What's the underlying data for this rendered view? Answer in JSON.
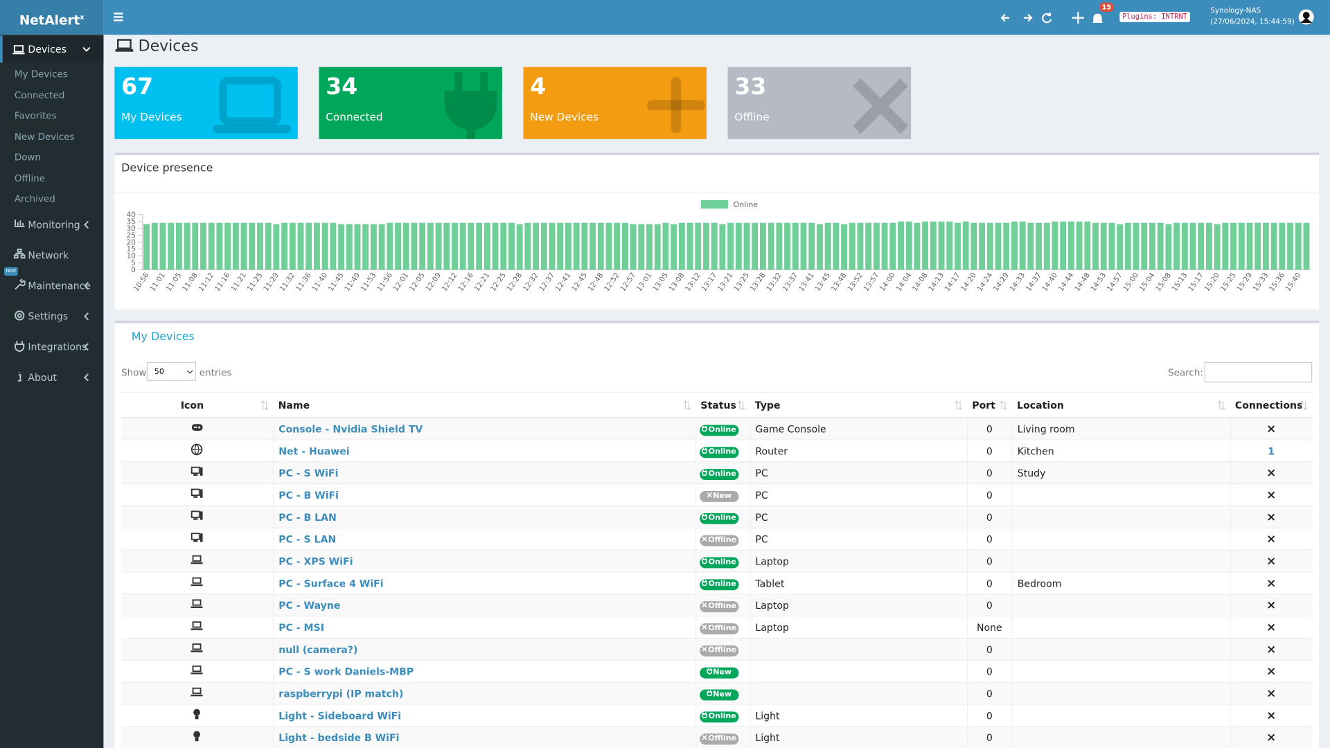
{
  "brand": {
    "name": "NetAlert",
    "sup": "x"
  },
  "sidebar": {
    "active": "Devices",
    "submenu": [
      "My Devices",
      "Connected",
      "Favorites",
      "New Devices",
      "Down",
      "Offline",
      "Archived"
    ],
    "menu": [
      "Monitoring",
      "Network",
      "Maintenance",
      "Settings",
      "Integrations",
      "About"
    ],
    "new_badge": "NEW"
  },
  "topbar": {
    "notifications": 15,
    "plugins": "Plugins: INTRNT",
    "host": "Synology-NAS",
    "datetime": "(27/06/2024, 15:44:59)"
  },
  "page_title": "Devices",
  "tiles": [
    {
      "value": 67,
      "label": "My Devices",
      "color": "#00c0ef"
    },
    {
      "value": 34,
      "label": "Connected",
      "color": "#00a65a"
    },
    {
      "value": 4,
      "label": "New Devices",
      "color": "#f39c12"
    },
    {
      "value": 33,
      "label": "Offline",
      "color": "#b5bac4"
    }
  ],
  "chart_data": {
    "type": "bar",
    "title": "Device presence",
    "categories": [
      "10:56",
      null,
      "11:01",
      null,
      "11:05",
      null,
      "11:08",
      null,
      "11:12",
      null,
      "11:16",
      null,
      "11:21",
      null,
      "11:25",
      null,
      "11:29",
      null,
      "11:32",
      null,
      "11:36",
      null,
      "11:40",
      null,
      "11:45",
      null,
      "11:49",
      null,
      "11:53",
      null,
      "11:56",
      null,
      "12:01",
      null,
      "12:05",
      null,
      "12:09",
      null,
      "12:12",
      null,
      "12:16",
      null,
      "12:21",
      null,
      "12:25",
      null,
      "12:28",
      null,
      "12:32",
      null,
      "12:37",
      null,
      "12:41",
      null,
      "12:45",
      null,
      "12:48",
      null,
      "12:52",
      null,
      "12:57",
      null,
      "13:01",
      null,
      "13:05",
      null,
      "13:08",
      null,
      "13:12",
      null,
      "13:17",
      null,
      "13:21",
      null,
      "13:25",
      null,
      "13:28",
      null,
      "13:32",
      null,
      "13:37",
      null,
      "13:41",
      null,
      "13:45",
      null,
      "13:48",
      null,
      "13:52",
      null,
      "13:57",
      null,
      "14:00",
      null,
      "14:04",
      null,
      "14:08",
      null,
      "14:13",
      null,
      "14:17",
      null,
      "14:20",
      null,
      "14:24",
      null,
      "14:29",
      null,
      "14:33",
      null,
      "14:37",
      null,
      "14:40",
      null,
      "14:44",
      null,
      "14:48",
      null,
      "14:53",
      null,
      "14:57",
      null,
      "15:00",
      null,
      "15:04",
      null,
      "15:08",
      null,
      "15:13",
      null,
      "15:17",
      null,
      "15:20",
      null,
      "15:25",
      null,
      "15:29",
      null,
      "15:33",
      null,
      "15:36",
      null,
      "15:40",
      null
    ],
    "series": [
      {
        "name": "Online",
        "color": "#6fcf97",
        "values": [
          33,
          34,
          34,
          34,
          34,
          34,
          34,
          34,
          34,
          34,
          34,
          34,
          34,
          34,
          34,
          34,
          33,
          34,
          34,
          34,
          34,
          34,
          34,
          34,
          33,
          33,
          33,
          33,
          33,
          33,
          34,
          34,
          34,
          34,
          34,
          34,
          34,
          34,
          34,
          34,
          34,
          34,
          34,
          34,
          34,
          34,
          33,
          34,
          34,
          34,
          34,
          34,
          34,
          34,
          34,
          34,
          34,
          34,
          34,
          34,
          33,
          33,
          33,
          33,
          34,
          33,
          34,
          34,
          34,
          34,
          34,
          33,
          34,
          34,
          34,
          34,
          34,
          34,
          34,
          34,
          34,
          34,
          34,
          33,
          34,
          34,
          33,
          34,
          34,
          34,
          34,
          34,
          34,
          35,
          35,
          34,
          35,
          35,
          35,
          35,
          34,
          35,
          34,
          34,
          34,
          34,
          34,
          35,
          35,
          34,
          34,
          34,
          35,
          35,
          35,
          35,
          35,
          34,
          34,
          34,
          33,
          34,
          34,
          34,
          34,
          34,
          33,
          34,
          34,
          34,
          34,
          34,
          33,
          34,
          34,
          34,
          34,
          34,
          34,
          34,
          34,
          34,
          34,
          34
        ]
      }
    ],
    "ylim": [
      0,
      40
    ],
    "yticks": [
      0,
      5,
      10,
      15,
      20,
      25,
      30,
      35,
      40
    ],
    "legend": "top"
  },
  "table": {
    "title": "My Devices",
    "show": "Show",
    "length": "50",
    "entries": "entries",
    "search": "Search:",
    "columns": [
      "Icon",
      "Name",
      "Status",
      "Type",
      "Port",
      "Location",
      "Connections"
    ],
    "rows": [
      {
        "name": "Console - Nvidia Shield TV",
        "status": "Online",
        "status_color": "#00a65a",
        "type": "Game Console",
        "port": 0,
        "location": "Living room",
        "connections": "×"
      },
      {
        "name": "Net - Huawei",
        "status": "Online",
        "status_color": "#00a65a",
        "type": "Router",
        "port": 0,
        "location": "Kitchen",
        "connections": 1
      },
      {
        "name": "PC - S WiFi",
        "status": "Online",
        "status_color": "#00a65a",
        "type": "PC",
        "port": 0,
        "location": "Study",
        "connections": "×"
      },
      {
        "name": "PC - B WiFi",
        "status": "New",
        "status_color": "#aaaaaa",
        "type": "PC",
        "port": 0,
        "location": null,
        "connections": "×"
      },
      {
        "name": "PC - B LAN",
        "status": "Online",
        "status_color": "#00a65a",
        "type": "PC",
        "port": 0,
        "location": null,
        "connections": "×"
      },
      {
        "name": "PC - S LAN",
        "status": "Offline",
        "status_color": "#aaaaaa",
        "type": "PC",
        "port": 0,
        "location": null,
        "connections": "×"
      },
      {
        "name": "PC - XPS WiFi",
        "status": "Online",
        "status_color": "#00a65a",
        "type": "Laptop",
        "port": 0,
        "location": null,
        "connections": "×"
      },
      {
        "name": "PC - Surface 4 WiFi",
        "status": "Online",
        "status_color": "#00a65a",
        "type": "Tablet",
        "port": 0,
        "location": "Bedroom",
        "connections": "×"
      },
      {
        "name": "PC - Wayne",
        "status": "Offline",
        "status_color": "#aaaaaa",
        "type": "Laptop",
        "port": 0,
        "location": null,
        "connections": "×"
      },
      {
        "name": "PC - MSI",
        "status": "Offline",
        "status_color": "#aaaaaa",
        "type": "Laptop",
        "port": "None",
        "location": null,
        "connections": "×"
      },
      {
        "name": "null (camera?)",
        "status": "Offline",
        "status_color": "#aaaaaa",
        "type": null,
        "port": 0,
        "location": null,
        "connections": "×"
      },
      {
        "name": "PC - S work Daniels-MBP",
        "status": "New",
        "status_color": "#00a65a",
        "type": null,
        "port": 0,
        "location": null,
        "connections": "×"
      },
      {
        "name": "raspberrypi (IP match)",
        "status": "New",
        "status_color": "#00a65a",
        "type": null,
        "port": 0,
        "location": null,
        "connections": "×"
      },
      {
        "name": "Light - Sideboard WiFi",
        "status": "Online",
        "status_color": "#00a65a",
        "type": "Light",
        "port": 0,
        "location": null,
        "connections": "×"
      },
      {
        "name": "Light - bedside B WiFi",
        "status": "Offline",
        "status_color": "#aaaaaa",
        "type": "Light",
        "port": 0,
        "location": null,
        "connections": "×"
      }
    ]
  }
}
